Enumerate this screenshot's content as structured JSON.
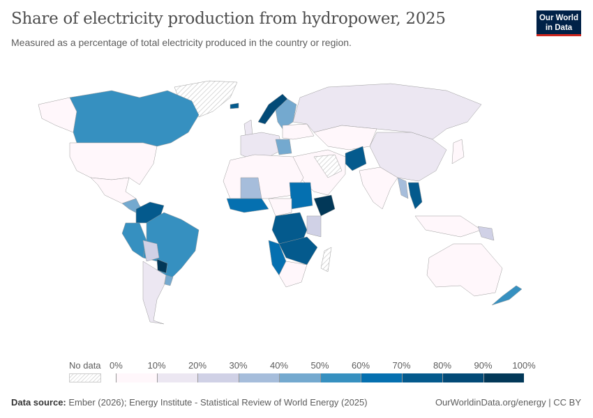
{
  "header": {
    "title": "Share of electricity production from hydropower, 2025",
    "subtitle": "Measured as a percentage of total electricity produced in the country or region.",
    "logo_text": "Our World in Data"
  },
  "legend": {
    "no_data_label": "No data",
    "ticks": [
      "0%",
      "10%",
      "20%",
      "30%",
      "40%",
      "50%",
      "60%",
      "70%",
      "80%",
      "90%",
      "100%"
    ],
    "colors": [
      "#fff7fb",
      "#ece7f2",
      "#d0d1e6",
      "#a6bddb",
      "#74a9cf",
      "#3690c0",
      "#0570b0",
      "#045a8d",
      "#034a77",
      "#023858"
    ]
  },
  "footer": {
    "source_label": "Data source:",
    "source_text": "Ember (2026); Energy Institute - Statistical Review of World Energy (2025)",
    "credit": "OurWorldinData.org/energy | CC BY"
  }
}
